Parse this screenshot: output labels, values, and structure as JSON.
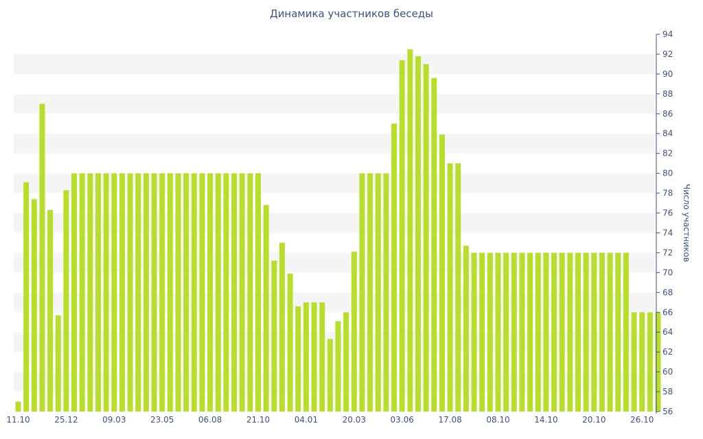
{
  "colors": {
    "bar": "#b8de2c",
    "band": "#f5f5f5",
    "axis": "#3c4f8c",
    "text": "#3c4f8c"
  },
  "chart_data": {
    "type": "bar",
    "title": "Динамика участников беседы",
    "xlabel": "",
    "ylabel": "Число участников",
    "ylim": [
      56,
      94
    ],
    "y_ticks": [
      56,
      58,
      60,
      62,
      64,
      66,
      68,
      70,
      72,
      74,
      76,
      78,
      80,
      82,
      84,
      86,
      88,
      90,
      92,
      94
    ],
    "y_axis_position": "right",
    "grid": "alternating horizontal bands",
    "x_tick_labels": [
      {
        "index": 0,
        "label": "11.10"
      },
      {
        "index": 6,
        "label": "25.12"
      },
      {
        "index": 12,
        "label": "09.03"
      },
      {
        "index": 18,
        "label": "23.05"
      },
      {
        "index": 24,
        "label": "06.08"
      },
      {
        "index": 30,
        "label": "21.10"
      },
      {
        "index": 36,
        "label": "04.01"
      },
      {
        "index": 42,
        "label": "20.03"
      },
      {
        "index": 48,
        "label": "03.06"
      },
      {
        "index": 54,
        "label": "17.08"
      },
      {
        "index": 60,
        "label": "08.10"
      },
      {
        "index": 66,
        "label": "14.10"
      },
      {
        "index": 72,
        "label": "20.10"
      },
      {
        "index": 78,
        "label": "26.10"
      }
    ],
    "values": [
      57,
      79.1,
      77.4,
      87,
      76.3,
      65.7,
      78.3,
      80,
      80,
      80,
      80,
      80,
      80,
      80,
      80,
      80,
      80,
      80,
      80,
      80,
      80,
      80,
      80,
      80,
      80,
      80,
      80,
      80,
      80,
      80,
      80,
      76.8,
      71.2,
      73,
      69.9,
      66.6,
      67,
      67,
      67,
      63.3,
      65.1,
      66,
      72.1,
      80,
      80,
      80,
      80,
      85,
      91.4,
      92.5,
      91.8,
      91,
      89.6,
      83.9,
      81,
      81,
      72.7,
      72,
      72,
      72,
      72,
      72,
      72,
      72,
      72,
      72,
      72,
      72,
      72,
      72,
      72,
      72,
      72,
      72,
      72,
      72,
      72,
      66,
      66,
      66,
      66
    ]
  }
}
